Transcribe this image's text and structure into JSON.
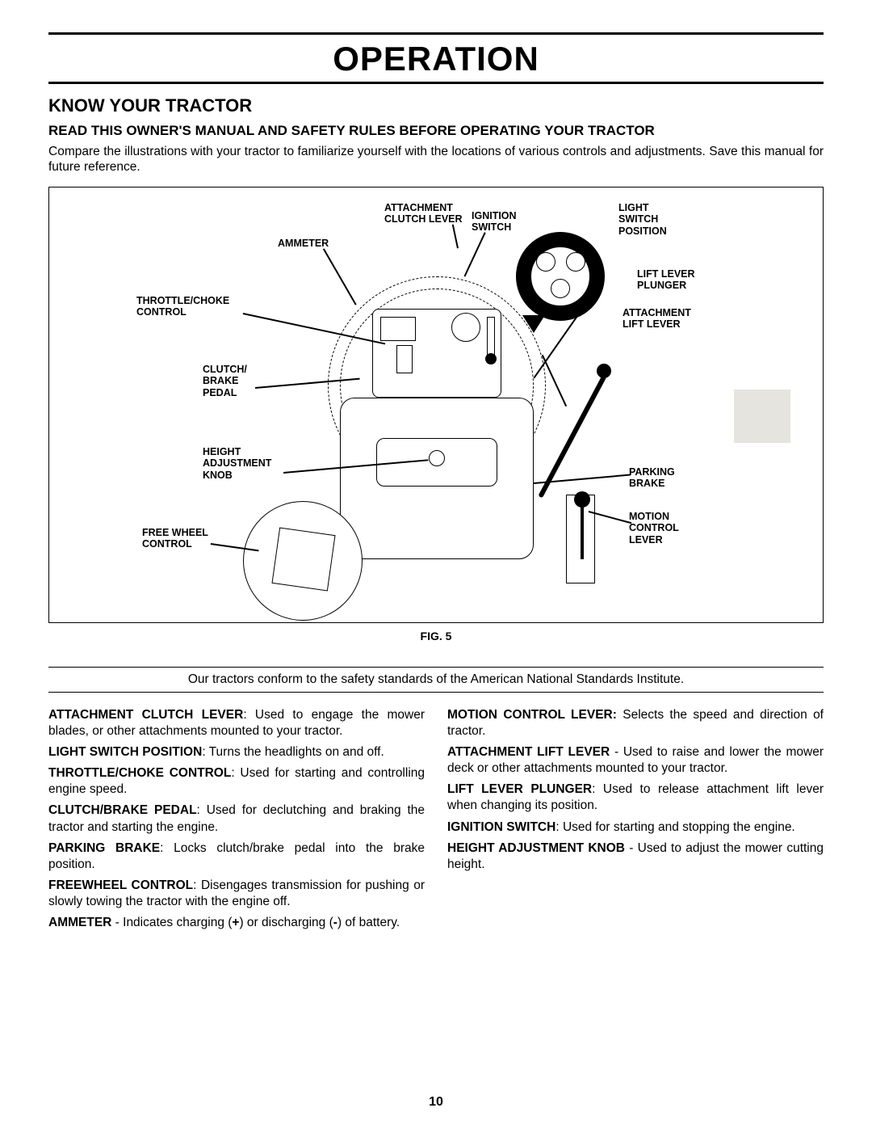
{
  "page": {
    "title": "OPERATION",
    "section_title": "KNOW YOUR TRACTOR",
    "subhead": "READ THIS OWNER'S MANUAL AND SAFETY RULES BEFORE OPERATING YOUR TRACTOR",
    "intro": "Compare the illustrations with your tractor to familiarize yourself with the locations of various controls and adjustments.  Save this manual for future reference.",
    "figure_caption": "FIG. 5",
    "standards_note": "Our tractors conform to the safety standards of the American National Standards Institute.",
    "page_number": "10"
  },
  "diagram": {
    "labels": {
      "attachment_clutch_lever": "ATTACHMENT\nCLUTCH LEVER",
      "ignition_switch": "IGNITION\nSWITCH",
      "light_switch_position": "LIGHT\nSWITCH\nPOSITION",
      "ammeter": "AMMETER",
      "lift_lever_plunger": "LIFT LEVER\nPLUNGER",
      "attachment_lift_lever": "ATTACHMENT\nLIFT LEVER",
      "throttle_choke_control": "THROTTLE/CHOKE\nCONTROL",
      "clutch_brake_pedal": "CLUTCH/\nBRAKE\nPEDAL",
      "height_adjustment_knob": "HEIGHT\nADJUSTMENT\nKNOB",
      "parking_brake": "PARKING\nBRAKE",
      "motion_control_lever": "MOTION\nCONTROL\nLEVER",
      "free_wheel_control": "FREE WHEEL\nCONTROL"
    },
    "style": {
      "border_color": "#000000",
      "background": "#ffffff",
      "label_fontsize": 12.5,
      "line_color": "#000000",
      "grey_patch": "#e5e4df"
    }
  },
  "definitions": {
    "left": [
      {
        "term": "ATTACHMENT CLUTCH LEVER",
        "sep": ":  ",
        "text": "Used to engage the mower blades, or other attachments mounted to your tractor."
      },
      {
        "term": "LIGHT SWITCH POSITION",
        "sep": ":  ",
        "text": "Turns the headlights on and off."
      },
      {
        "term": "THROTTLE/CHOKE CONTROL",
        "sep": ":  ",
        "text": "Used for starting and controlling engine speed."
      },
      {
        "term": "CLUTCH/BRAKE PEDAL",
        "sep": ":  ",
        "text": "Used for declutching and braking the tractor and starting the engine."
      },
      {
        "term": "PARKING BRAKE",
        "sep": ": ",
        "text": "Locks clutch/brake pedal into the brake position."
      },
      {
        "term": "FREEWHEEL CONTROL",
        "sep": ": ",
        "text": "Disengages transmission for pushing or slowly towing the tractor with the engine off."
      },
      {
        "term": "AMMETER",
        "sep": " - ",
        "text": "Indicates charging (+) or discharging (-) of battery."
      }
    ],
    "right": [
      {
        "term": "MOTION CONTROL LEVER:",
        "sep": "  ",
        "text": "Selects the speed and direction of tractor."
      },
      {
        "term": "ATTACHMENT LIFT LEVER",
        "sep": " - ",
        "text": "Used to raise and lower the mower deck or other attachments mounted to your tractor."
      },
      {
        "term": "LIFT LEVER PLUNGER",
        "sep": ":  ",
        "text": "Used to release attachment lift lever when changing its position."
      },
      {
        "term": "IGNITION SWITCH",
        "sep": ":  ",
        "text": "Used for starting and stopping the engine."
      },
      {
        "term": "HEIGHT ADJUSTMENT KNOB",
        "sep": " - ",
        "text": "Used to adjust the mower cutting height."
      }
    ]
  }
}
